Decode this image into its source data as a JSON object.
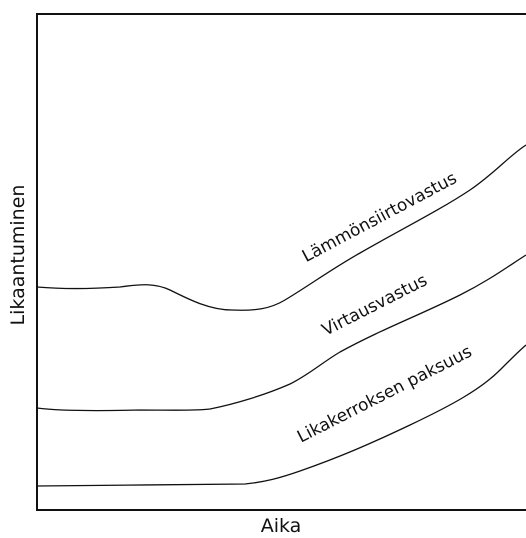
{
  "axes": {
    "x_label": "Aika",
    "y_label": "Likaantuminen"
  },
  "curves": [
    {
      "label": "Lämmönsiirtovastus"
    },
    {
      "label": "Virtausvastus"
    },
    {
      "label": "Likakerroksen paksuus"
    }
  ]
}
